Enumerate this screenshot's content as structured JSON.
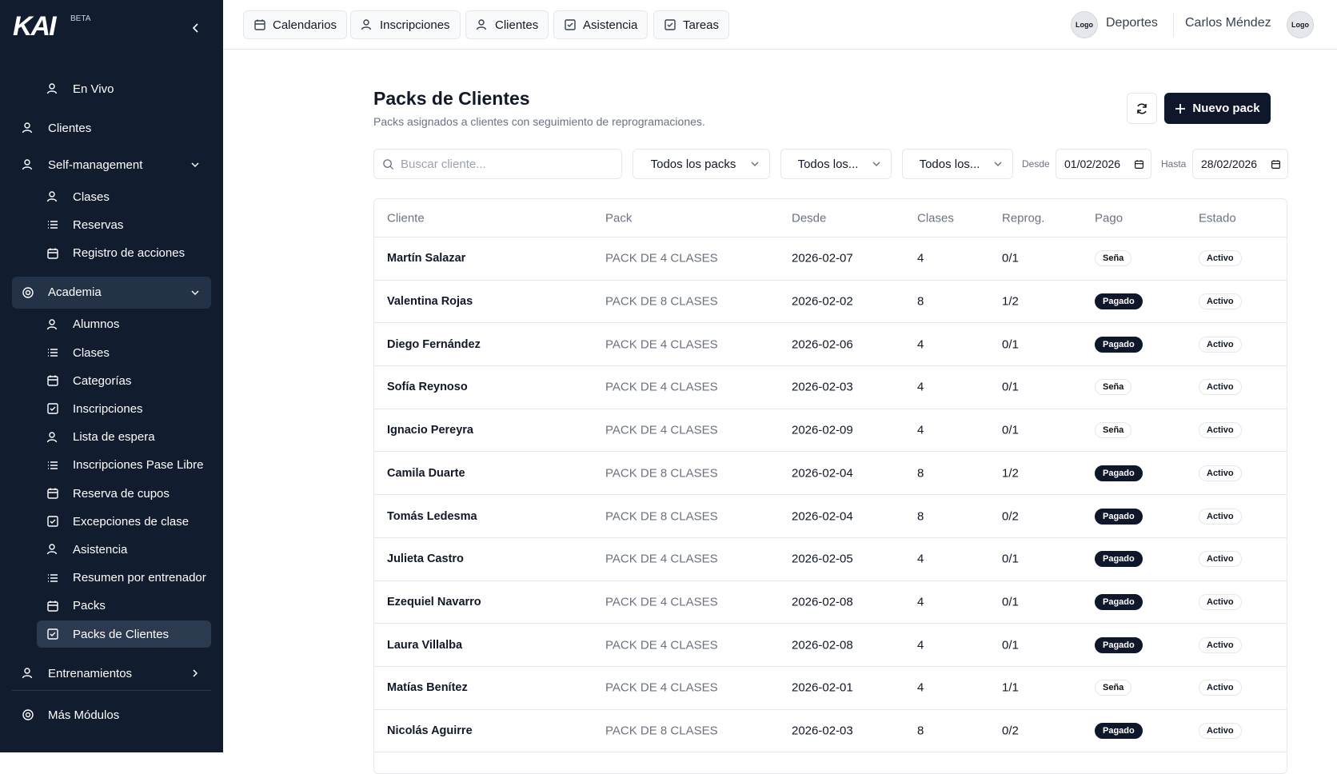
{
  "sidebar": {
    "logo": "KAI",
    "badge": "BETA",
    "sections": [
      {
        "items": [
          {
            "label": "En Vivo"
          }
        ]
      },
      {
        "label": "Clientes"
      },
      {
        "label": "Self-management",
        "expanded": true,
        "items": [
          {
            "label": "Clases"
          },
          {
            "label": "Reservas"
          },
          {
            "label": "Registro de acciones"
          }
        ]
      },
      {
        "label": "Academia",
        "expanded": true,
        "highlighted": true,
        "items": [
          {
            "label": "Alumnos"
          },
          {
            "label": "Clases"
          },
          {
            "label": "Categorías"
          },
          {
            "label": "Inscripciones"
          },
          {
            "label": "Lista de espera"
          },
          {
            "label": "Inscripciones Pase Libre"
          },
          {
            "label": "Reserva de cupos"
          },
          {
            "label": "Excepciones de clase"
          },
          {
            "label": "Asistencia"
          },
          {
            "label": "Resumen por entrenador"
          },
          {
            "label": "Packs"
          },
          {
            "label": "Packs de Clientes",
            "selected": true
          }
        ]
      },
      {
        "label": "Entrenamientos",
        "expanded": false
      }
    ],
    "footer": "Más Módulos"
  },
  "topbar": {
    "tabs": [
      "Calendarios",
      "Inscripciones",
      "Clientes",
      "Asistencia",
      "Tareas"
    ],
    "org_logo": "Logo",
    "org_name": "Deportes",
    "user_name": "Carlos Méndez",
    "user_logo": "Logo"
  },
  "header": {
    "title": "Packs de Clientes",
    "subtitle": "Packs asignados a clientes con seguimiento de reprogramaciones.",
    "new_button": "Nuevo pack"
  },
  "filters": {
    "search_placeholder": "Buscar cliente...",
    "selects": [
      "Todos los packs",
      "Todos los...",
      "Todos los..."
    ],
    "from_label": "Desde",
    "from_value": "01/02/2026",
    "to_label": "Hasta",
    "to_value": "28/02/2026"
  },
  "table": {
    "columns": [
      "Cliente",
      "Pack",
      "Desde",
      "Clases",
      "Reprog.",
      "Pago",
      "Estado"
    ],
    "badge_fill": {
      "Pagado": "#0f172a",
      "Seña": "#ffffff"
    },
    "rows": [
      [
        "Martín Salazar",
        "PACK DE 4 CLASES",
        "2026-02-07",
        "4",
        "0/1",
        "Seña",
        "Activo"
      ],
      [
        "Valentina Rojas",
        "PACK DE 8 CLASES",
        "2026-02-02",
        "8",
        "1/2",
        "Pagado",
        "Activo"
      ],
      [
        "Diego Fernández",
        "PACK DE 4 CLASES",
        "2026-02-06",
        "4",
        "0/1",
        "Pagado",
        "Activo"
      ],
      [
        "Sofía Reynoso",
        "PACK DE 4 CLASES",
        "2026-02-03",
        "4",
        "0/1",
        "Seña",
        "Activo"
      ],
      [
        "Ignacio Pereyra",
        "PACK DE 4 CLASES",
        "2026-02-09",
        "4",
        "0/1",
        "Seña",
        "Activo"
      ],
      [
        "Camila Duarte",
        "PACK DE 8 CLASES",
        "2026-02-04",
        "8",
        "1/2",
        "Pagado",
        "Activo"
      ],
      [
        "Tomás Ledesma",
        "PACK DE 8 CLASES",
        "2026-02-04",
        "8",
        "0/2",
        "Pagado",
        "Activo"
      ],
      [
        "Julieta Castro",
        "PACK DE 4 CLASES",
        "2026-02-05",
        "4",
        "0/1",
        "Pagado",
        "Activo"
      ],
      [
        "Ezequiel Navarro",
        "PACK DE 4 CLASES",
        "2026-02-08",
        "4",
        "0/1",
        "Pagado",
        "Activo"
      ],
      [
        "Laura Villalba",
        "PACK DE 4 CLASES",
        "2026-02-08",
        "4",
        "0/1",
        "Pagado",
        "Activo"
      ],
      [
        "Matías Benítez",
        "PACK DE 4 CLASES",
        "2026-02-01",
        "4",
        "1/1",
        "Seña",
        "Activo"
      ],
      [
        "Nicolás Aguirre",
        "PACK DE 8 CLASES",
        "2026-02-03",
        "8",
        "0/2",
        "Pagado",
        "Activo"
      ]
    ]
  }
}
